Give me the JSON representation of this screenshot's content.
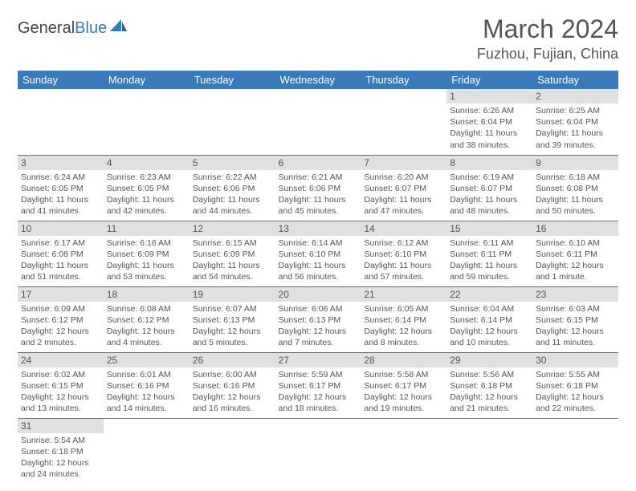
{
  "brand": {
    "part1": "General",
    "part2": "Blue"
  },
  "title": "March 2024",
  "location": "Fuzhou, Fujian, China",
  "colors": {
    "accent": "#3a7ab8",
    "dayStripe": "#e0e0e0",
    "text": "#555555"
  },
  "dayHeaders": [
    "Sunday",
    "Monday",
    "Tuesday",
    "Wednesday",
    "Thursday",
    "Friday",
    "Saturday"
  ],
  "weeks": [
    [
      null,
      null,
      null,
      null,
      null,
      {
        "n": "1",
        "sr": "Sunrise: 6:26 AM",
        "ss": "Sunset: 6:04 PM",
        "dl": "Daylight: 11 hours and 38 minutes."
      },
      {
        "n": "2",
        "sr": "Sunrise: 6:25 AM",
        "ss": "Sunset: 6:04 PM",
        "dl": "Daylight: 11 hours and 39 minutes."
      }
    ],
    [
      {
        "n": "3",
        "sr": "Sunrise: 6:24 AM",
        "ss": "Sunset: 6:05 PM",
        "dl": "Daylight: 11 hours and 41 minutes."
      },
      {
        "n": "4",
        "sr": "Sunrise: 6:23 AM",
        "ss": "Sunset: 6:05 PM",
        "dl": "Daylight: 11 hours and 42 minutes."
      },
      {
        "n": "5",
        "sr": "Sunrise: 6:22 AM",
        "ss": "Sunset: 6:06 PM",
        "dl": "Daylight: 11 hours and 44 minutes."
      },
      {
        "n": "6",
        "sr": "Sunrise: 6:21 AM",
        "ss": "Sunset: 6:06 PM",
        "dl": "Daylight: 11 hours and 45 minutes."
      },
      {
        "n": "7",
        "sr": "Sunrise: 6:20 AM",
        "ss": "Sunset: 6:07 PM",
        "dl": "Daylight: 11 hours and 47 minutes."
      },
      {
        "n": "8",
        "sr": "Sunrise: 6:19 AM",
        "ss": "Sunset: 6:07 PM",
        "dl": "Daylight: 11 hours and 48 minutes."
      },
      {
        "n": "9",
        "sr": "Sunrise: 6:18 AM",
        "ss": "Sunset: 6:08 PM",
        "dl": "Daylight: 11 hours and 50 minutes."
      }
    ],
    [
      {
        "n": "10",
        "sr": "Sunrise: 6:17 AM",
        "ss": "Sunset: 6:08 PM",
        "dl": "Daylight: 11 hours and 51 minutes."
      },
      {
        "n": "11",
        "sr": "Sunrise: 6:16 AM",
        "ss": "Sunset: 6:09 PM",
        "dl": "Daylight: 11 hours and 53 minutes."
      },
      {
        "n": "12",
        "sr": "Sunrise: 6:15 AM",
        "ss": "Sunset: 6:09 PM",
        "dl": "Daylight: 11 hours and 54 minutes."
      },
      {
        "n": "13",
        "sr": "Sunrise: 6:14 AM",
        "ss": "Sunset: 6:10 PM",
        "dl": "Daylight: 11 hours and 56 minutes."
      },
      {
        "n": "14",
        "sr": "Sunrise: 6:12 AM",
        "ss": "Sunset: 6:10 PM",
        "dl": "Daylight: 11 hours and 57 minutes."
      },
      {
        "n": "15",
        "sr": "Sunrise: 6:11 AM",
        "ss": "Sunset: 6:11 PM",
        "dl": "Daylight: 11 hours and 59 minutes."
      },
      {
        "n": "16",
        "sr": "Sunrise: 6:10 AM",
        "ss": "Sunset: 6:11 PM",
        "dl": "Daylight: 12 hours and 1 minute."
      }
    ],
    [
      {
        "n": "17",
        "sr": "Sunrise: 6:09 AM",
        "ss": "Sunset: 6:12 PM",
        "dl": "Daylight: 12 hours and 2 minutes."
      },
      {
        "n": "18",
        "sr": "Sunrise: 6:08 AM",
        "ss": "Sunset: 6:12 PM",
        "dl": "Daylight: 12 hours and 4 minutes."
      },
      {
        "n": "19",
        "sr": "Sunrise: 6:07 AM",
        "ss": "Sunset: 6:13 PM",
        "dl": "Daylight: 12 hours and 5 minutes."
      },
      {
        "n": "20",
        "sr": "Sunrise: 6:06 AM",
        "ss": "Sunset: 6:13 PM",
        "dl": "Daylight: 12 hours and 7 minutes."
      },
      {
        "n": "21",
        "sr": "Sunrise: 6:05 AM",
        "ss": "Sunset: 6:14 PM",
        "dl": "Daylight: 12 hours and 8 minutes."
      },
      {
        "n": "22",
        "sr": "Sunrise: 6:04 AM",
        "ss": "Sunset: 6:14 PM",
        "dl": "Daylight: 12 hours and 10 minutes."
      },
      {
        "n": "23",
        "sr": "Sunrise: 6:03 AM",
        "ss": "Sunset: 6:15 PM",
        "dl": "Daylight: 12 hours and 11 minutes."
      }
    ],
    [
      {
        "n": "24",
        "sr": "Sunrise: 6:02 AM",
        "ss": "Sunset: 6:15 PM",
        "dl": "Daylight: 12 hours and 13 minutes."
      },
      {
        "n": "25",
        "sr": "Sunrise: 6:01 AM",
        "ss": "Sunset: 6:16 PM",
        "dl": "Daylight: 12 hours and 14 minutes."
      },
      {
        "n": "26",
        "sr": "Sunrise: 6:00 AM",
        "ss": "Sunset: 6:16 PM",
        "dl": "Daylight: 12 hours and 16 minutes."
      },
      {
        "n": "27",
        "sr": "Sunrise: 5:59 AM",
        "ss": "Sunset: 6:17 PM",
        "dl": "Daylight: 12 hours and 18 minutes."
      },
      {
        "n": "28",
        "sr": "Sunrise: 5:58 AM",
        "ss": "Sunset: 6:17 PM",
        "dl": "Daylight: 12 hours and 19 minutes."
      },
      {
        "n": "29",
        "sr": "Sunrise: 5:56 AM",
        "ss": "Sunset: 6:18 PM",
        "dl": "Daylight: 12 hours and 21 minutes."
      },
      {
        "n": "30",
        "sr": "Sunrise: 5:55 AM",
        "ss": "Sunset: 6:18 PM",
        "dl": "Daylight: 12 hours and 22 minutes."
      }
    ],
    [
      {
        "n": "31",
        "sr": "Sunrise: 5:54 AM",
        "ss": "Sunset: 6:18 PM",
        "dl": "Daylight: 12 hours and 24 minutes."
      },
      null,
      null,
      null,
      null,
      null,
      null
    ]
  ]
}
